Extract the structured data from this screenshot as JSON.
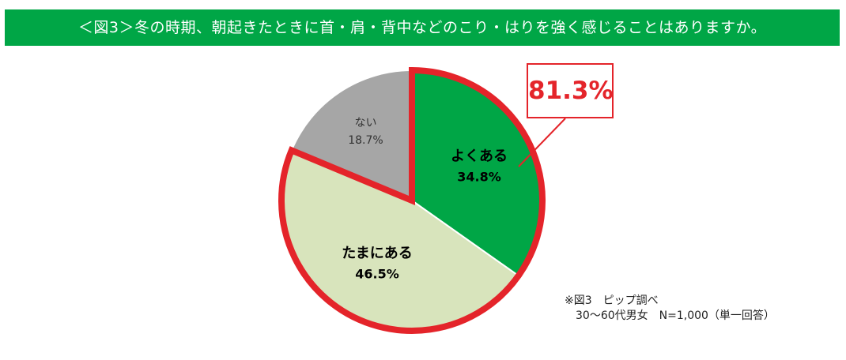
{
  "header": {
    "title": "＜図3＞冬の時期、朝起きたときに首・肩・背中などのこり・はりを強く感じることはありますか。"
  },
  "callout": {
    "value": "81.3%"
  },
  "note": {
    "line1": "※図3　ピップ調べ",
    "line2": "　30〜60代男女　N=1,000（単一回答）"
  },
  "colors": {
    "banner": "#00A646",
    "highlight_border": "#E4242A",
    "slice_often": "#00A646",
    "slice_sometimes": "#D8E4BC",
    "slice_no": "#A6A6A6"
  },
  "chart_data": {
    "type": "pie",
    "title": "",
    "start": "12 o'clock, clockwise",
    "slices": [
      {
        "label": "よくある",
        "value": 34.8,
        "display": "34.8%",
        "color": "#00A646",
        "highlighted": true,
        "label_bold": true
      },
      {
        "label": "たまにある",
        "value": 46.5,
        "display": "46.5%",
        "color": "#D8E4BC",
        "highlighted": true,
        "label_bold": true
      },
      {
        "label": "ない",
        "value": 18.7,
        "display": "18.7%",
        "color": "#A6A6A6",
        "highlighted": false,
        "label_bold": false
      }
    ],
    "highlight_total": "81.3%"
  }
}
